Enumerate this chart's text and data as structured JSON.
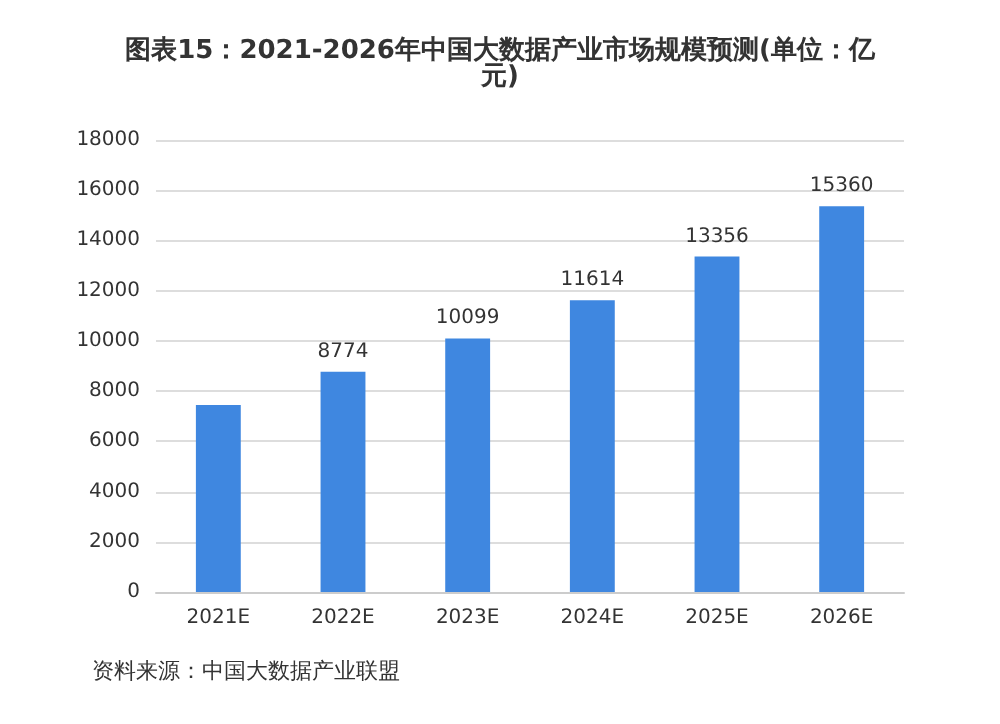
{
  "chart_data": {
    "type": "bar",
    "title": "图表15：2021-2026年中国大数据产业市场规模预测(单位：亿元)",
    "categories": [
      "2021E",
      "2022E",
      "2023E",
      "2024E",
      "2025E",
      "2026E"
    ],
    "values": [
      7450,
      8774,
      10099,
      11614,
      13356,
      15360
    ],
    "value_labels": [
      null,
      "8774",
      "10099",
      "11614",
      "13356",
      "15360"
    ],
    "color": "#3f87e0",
    "ylim": [
      0,
      18000
    ],
    "yticks": [
      0,
      2000,
      4000,
      6000,
      8000,
      10000,
      12000,
      14000,
      16000,
      18000
    ],
    "grid": "y",
    "annotations": [
      "资料来源：中国大数据产业联盟"
    ]
  }
}
